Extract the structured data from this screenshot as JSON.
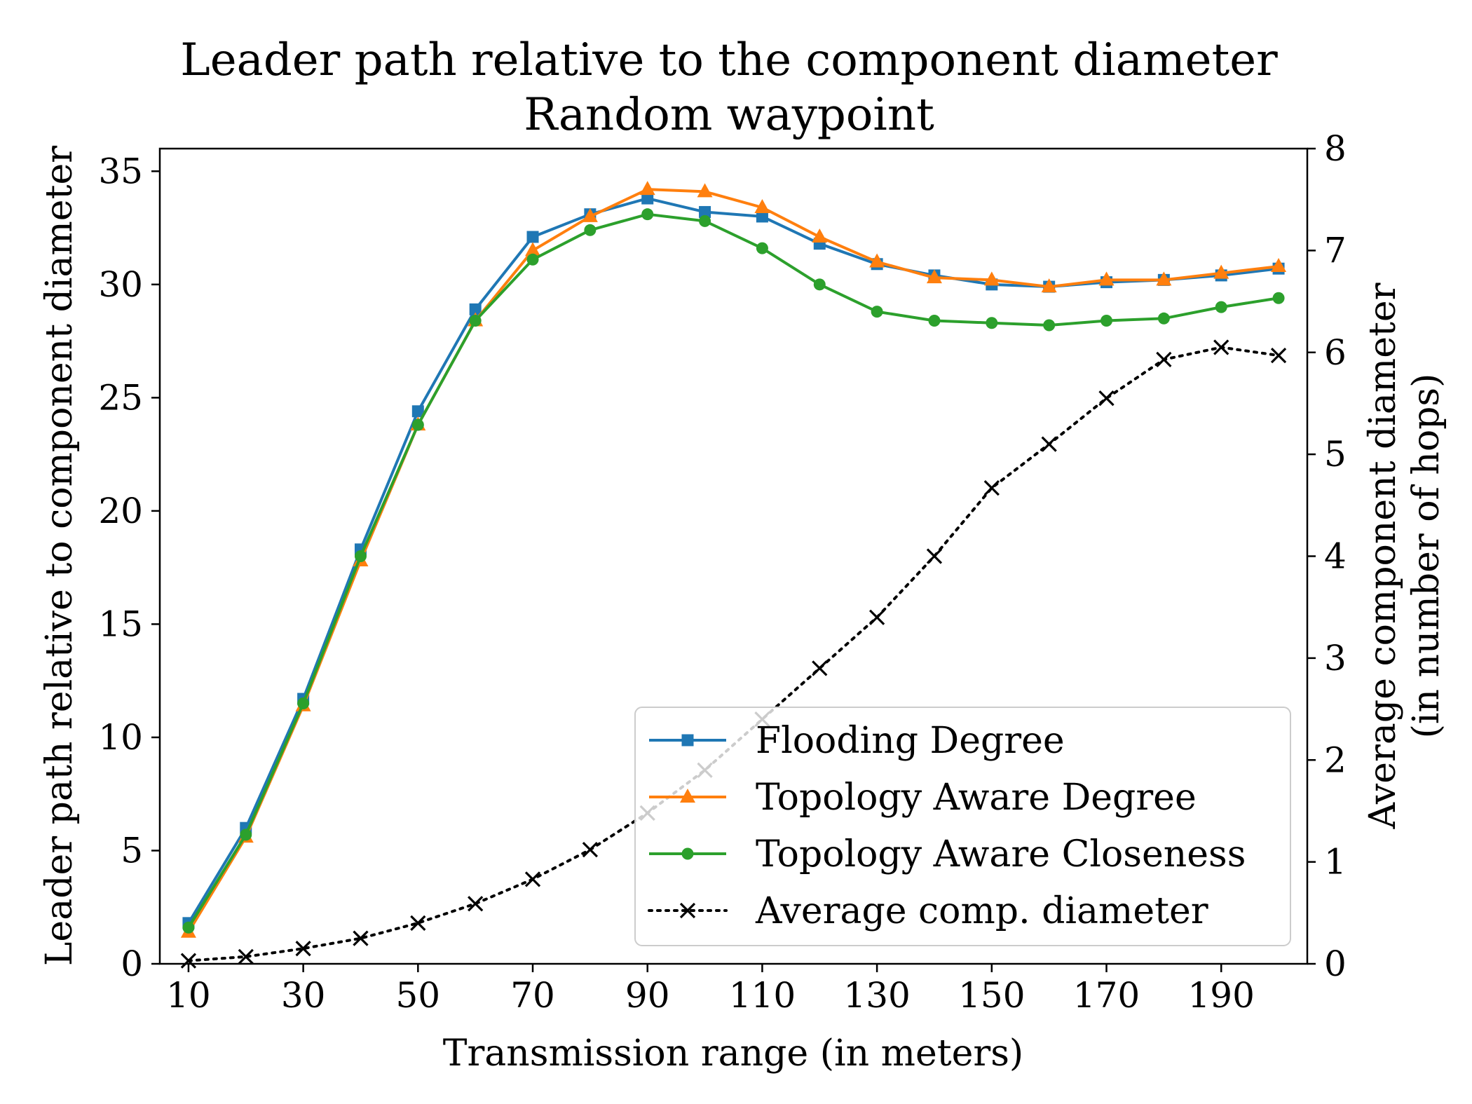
{
  "chart_data": {
    "type": "line",
    "title": "Leader path relative to the component diameter",
    "subtitle": "Random waypoint",
    "xlabel": "Transmission range (in meters)",
    "ylabel": "Leader path relative to component diameter",
    "y2label_line1": "Average component diameter",
    "y2label_line2": "(in number of hops)",
    "x": [
      10,
      20,
      30,
      40,
      50,
      60,
      70,
      80,
      90,
      100,
      110,
      120,
      130,
      140,
      150,
      160,
      170,
      180,
      190,
      200
    ],
    "xticks": [
      10,
      30,
      50,
      70,
      90,
      110,
      130,
      150,
      170,
      190
    ],
    "xlim": [
      5,
      205
    ],
    "ylim": [
      0,
      36
    ],
    "yticks": [
      0,
      5,
      10,
      15,
      20,
      25,
      30,
      35
    ],
    "y2lim": [
      0,
      8
    ],
    "y2ticks": [
      0,
      1,
      2,
      3,
      4,
      5,
      6,
      7,
      8
    ],
    "grid": false,
    "legend_position": "lower-right",
    "series": [
      {
        "name": "Flooding Degree",
        "axis": "left",
        "color": "#1f77b4",
        "marker": "square",
        "linestyle": "solid",
        "values": [
          1.8,
          6.0,
          11.7,
          18.3,
          24.4,
          28.9,
          32.1,
          33.1,
          33.8,
          33.2,
          33.0,
          31.8,
          30.9,
          30.4,
          30.0,
          29.9,
          30.1,
          30.2,
          30.4,
          30.7
        ]
      },
      {
        "name": "Topology Aware Degree",
        "axis": "left",
        "color": "#ff7f0e",
        "marker": "triangle",
        "linestyle": "solid",
        "values": [
          1.4,
          5.6,
          11.4,
          17.8,
          23.8,
          28.4,
          31.5,
          33.0,
          34.2,
          34.1,
          33.4,
          32.1,
          31.0,
          30.3,
          30.2,
          29.9,
          30.2,
          30.2,
          30.5,
          30.8
        ]
      },
      {
        "name": "Topology Aware Closeness",
        "axis": "left",
        "color": "#2ca02c",
        "marker": "circle",
        "linestyle": "solid",
        "values": [
          1.6,
          5.7,
          11.5,
          18.0,
          23.8,
          28.4,
          31.1,
          32.4,
          33.1,
          32.8,
          31.6,
          30.0,
          28.8,
          28.4,
          28.3,
          28.2,
          28.4,
          28.5,
          29.0,
          29.4
        ]
      },
      {
        "name": "Average comp. diameter",
        "axis": "right",
        "color": "#000000",
        "marker": "x",
        "linestyle": "dotted",
        "values": [
          0.03,
          0.07,
          0.15,
          0.25,
          0.4,
          0.59,
          0.83,
          1.12,
          1.48,
          1.9,
          2.4,
          2.9,
          3.4,
          4.0,
          4.67,
          5.1,
          5.55,
          5.93,
          6.05,
          5.97
        ]
      }
    ]
  }
}
